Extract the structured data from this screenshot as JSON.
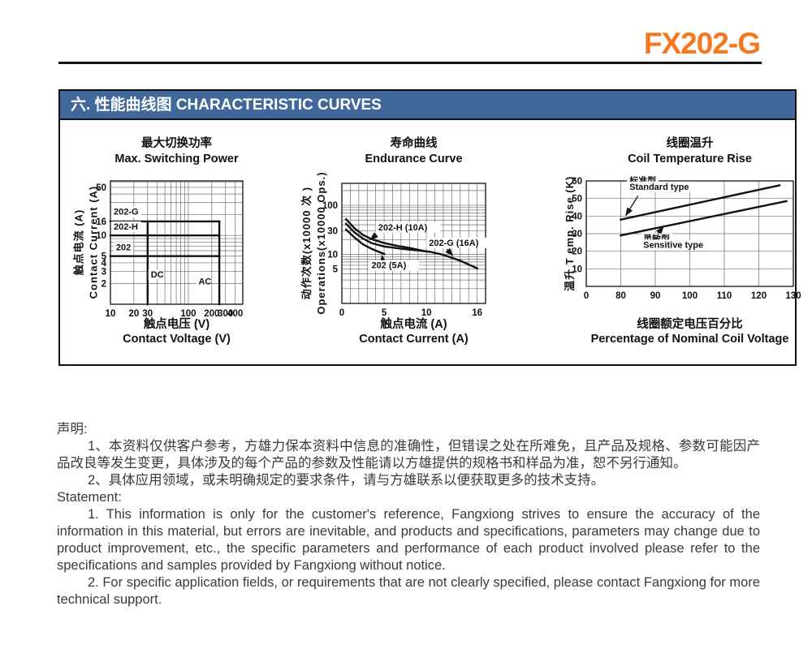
{
  "page": {
    "product_code": "FX202-G",
    "section_title": "六. 性能曲线图 CHARACTERISTIC CURVES"
  },
  "colors": {
    "accent_orange": "#F4791E",
    "section_bar_blue": "#41689A",
    "curve_black": "#111111",
    "grid_gray": "#6e6e6e"
  },
  "statement": {
    "heading_cn": "声明:",
    "items_cn": [
      "1、本资料仅供客户参考，方雄力保本资料中信息的准确性，但错误之处在所难免，且产品及规格、参数可能因产品改良等发生变更，具体涉及的每个产品的参数及性能请以方雄提供的规格书和样品为准，恕不另行通知。",
      "2、具体应用领域，或未明确规定的要求条件，请与方雄联系以便获取更多的技术支持。"
    ],
    "heading_en": "Statement:",
    "items_en": [
      "1. This information is only for the customer's reference, Fangxiong strives to ensure the accuracy of the information in this material, but errors are inevitable, and products and specifications, parameters may change due to product improvement, etc., the specific parameters and performance of each product involved please refer to the specifications and samples provided by Fangxiong without notice.",
      "2. For specific application fields, or requirements that are not clearly specified, please contact Fangxiong for more technical support."
    ]
  },
  "chart_data": [
    {
      "type": "line",
      "title_cn": "最大切换功率",
      "title_en": "Max. Switching Power",
      "xlabel_cn": "触点电压 (V)",
      "xlabel_en": "Contact Voltage (V)",
      "ylabel_cn": "触点电流 (A)",
      "ylabel_en": "Contact Current (A)",
      "x_axis": {
        "scale": "log",
        "range": [
          10,
          500
        ],
        "gridlines": [
          20,
          30,
          40,
          50,
          60,
          70,
          80,
          90,
          100,
          200,
          300,
          400
        ],
        "ticks": [
          [
            10,
            "10"
          ],
          [
            20,
            "20"
          ],
          [
            30,
            "30"
          ],
          [
            100,
            "100"
          ],
          [
            200,
            "200"
          ],
          [
            300,
            "300"
          ],
          [
            400,
            "400"
          ]
        ]
      },
      "y_axis": {
        "scale": "log",
        "range": [
          1,
          62
        ],
        "gridlines": [
          2,
          3,
          4,
          5,
          6,
          7,
          8,
          9,
          10,
          20,
          30,
          40,
          50,
          60
        ],
        "ticks": [
          [
            2,
            "2"
          ],
          [
            3,
            "3"
          ],
          [
            4,
            "4"
          ],
          [
            5,
            "5"
          ],
          [
            10,
            "10"
          ],
          [
            16,
            "16"
          ],
          [
            50,
            "50"
          ]
        ]
      },
      "series": [
        {
          "name": "202-G max switching boundary",
          "points": [
            [
              10,
              16
            ],
            [
              250,
              16
            ]
          ]
        },
        {
          "name": "202-H max switching boundary",
          "points": [
            [
              10,
              10
            ],
            [
              250,
              10
            ]
          ]
        },
        {
          "name": "202 max switching boundary",
          "points": [
            [
              10,
              5
            ],
            [
              250,
              5
            ]
          ]
        },
        {
          "name": "DC voltage limit 30V",
          "points": [
            [
              30,
              1
            ],
            [
              30,
              16
            ]
          ]
        },
        {
          "name": "AC voltage limit 250V",
          "points": [
            [
              250,
              1
            ],
            [
              250,
              16
            ]
          ]
        }
      ],
      "annotations": [
        {
          "text": "202-G",
          "at": [
            11,
            20
          ],
          "bg": true
        },
        {
          "text": "202-H",
          "at": [
            11,
            12.2
          ],
          "bg": true
        },
        {
          "text": "202",
          "at": [
            11.8,
            6.1
          ],
          "bg": true
        },
        {
          "text": "DC",
          "at": [
            33,
            2.45
          ],
          "bg": true
        },
        {
          "text": "AC",
          "at": [
            135,
            1.95
          ],
          "bg": true
        }
      ],
      "arrows": []
    },
    {
      "type": "line",
      "title_cn": "寿命曲线",
      "title_en": "Endurance Curve",
      "xlabel_cn": "触点电流 (A)",
      "xlabel_en": "Contact Current (A)",
      "ylabel_cn": "动作次数(x10000 次 )",
      "ylabel_en": "Operations(x10000 Ops.)",
      "x_axis": {
        "scale": "linear",
        "range": [
          0,
          17
        ],
        "gridlines": [
          1,
          2,
          3,
          4,
          5,
          6,
          7,
          8,
          9,
          10,
          11,
          12,
          13,
          14,
          15,
          16
        ],
        "ticks": [
          [
            0,
            "0"
          ],
          [
            5,
            "5"
          ],
          [
            10,
            "10"
          ],
          [
            16,
            "16"
          ]
        ]
      },
      "y_axis": {
        "scale": "log",
        "range": [
          1,
          280
        ],
        "gridlines": [
          2,
          3,
          4,
          5,
          6,
          7,
          8,
          9,
          10,
          20,
          30,
          40,
          50,
          60,
          70,
          80,
          90,
          100,
          200
        ],
        "ticks": [
          [
            5,
            "5"
          ],
          [
            10,
            "10"
          ],
          [
            30,
            "30"
          ],
          [
            100,
            "100"
          ]
        ]
      },
      "series": [
        {
          "name": "202-H (10A)",
          "points": [
            [
              0.5,
              52
            ],
            [
              1.5,
              34
            ],
            [
              2.5,
              25
            ],
            [
              3.5,
              20.5
            ],
            [
              5,
              17
            ],
            [
              6.5,
              15
            ],
            [
              8,
              13.5
            ],
            [
              10,
              11.5
            ]
          ]
        },
        {
          "name": "202-G (16A)",
          "points": [
            [
              0.5,
              42
            ],
            [
              1.5,
              28
            ],
            [
              2.5,
              21
            ],
            [
              3.5,
              17
            ],
            [
              5,
              14.5
            ],
            [
              7,
              13
            ],
            [
              9,
              12
            ],
            [
              10.5,
              11.2
            ],
            [
              12,
              9.8
            ],
            [
              14,
              7.4
            ],
            [
              16,
              5.2
            ]
          ]
        },
        {
          "name": "202 (5A)",
          "points": [
            [
              0.5,
              32
            ],
            [
              1.5,
              22
            ],
            [
              2.5,
              16
            ],
            [
              3.5,
              13
            ],
            [
              4.5,
              11
            ],
            [
              5,
              10.2
            ]
          ]
        }
      ],
      "annotations": [
        {
          "text": "202-H  (10A)",
          "at": [
            4.3,
            31
          ],
          "bg": true
        },
        {
          "text": "202-G  (16A)",
          "at": [
            10.3,
            15
          ],
          "bg": true
        },
        {
          "text": "202  (5A)",
          "at": [
            3.5,
            5.2
          ],
          "bg": true
        }
      ],
      "arrows": [
        {
          "from": [
            4.1,
            25.5
          ],
          "to": [
            3.4,
            20
          ]
        },
        {
          "from": [
            12.4,
            12.8
          ],
          "to": [
            13.1,
            9.5
          ]
        },
        {
          "from": [
            4.9,
            6.4
          ],
          "to": [
            4.75,
            9.4
          ]
        }
      ]
    },
    {
      "type": "line",
      "title_cn": "线圈温升",
      "title_en": "Coil Temperature Rise",
      "xlabel_cn": "线圈额定电压百分比",
      "xlabel_en": "Percentage of Nominal Coil Voltage",
      "ylabel_cn": "温升 T emp. Rise (K)",
      "x_axis": {
        "scale": "segmented",
        "segments": [
          [
            0,
            0
          ],
          [
            80,
            1
          ],
          [
            130,
            6
          ]
        ],
        "range": [
          0,
          6
        ],
        "gridlines": [
          80,
          90,
          100,
          110,
          120
        ],
        "ticks": [
          [
            0,
            "0"
          ],
          [
            80,
            "80"
          ],
          [
            90,
            "90"
          ],
          [
            100,
            "100"
          ],
          [
            110,
            "110"
          ],
          [
            120,
            "120"
          ],
          [
            130,
            "130"
          ]
        ]
      },
      "y_axis": {
        "scale": "linear",
        "range": [
          0,
          60
        ],
        "gridlines": [
          10,
          20,
          30,
          40,
          50
        ],
        "ticks": [
          [
            10,
            "10"
          ],
          [
            20,
            "20"
          ],
          [
            30,
            "30"
          ],
          [
            40,
            "40"
          ],
          [
            50,
            "50"
          ],
          [
            60,
            "60"
          ]
        ]
      },
      "series": [
        {
          "name": "标准型 Standard type",
          "points": [
            [
              80,
              38
            ],
            [
              126,
              57.5
            ]
          ]
        },
        {
          "name": "灵敏型 Sensitive type",
          "points": [
            [
              80,
              29
            ],
            [
              128,
              48.5
            ]
          ]
        }
      ],
      "annotations": [
        {
          "text": "标准型",
          "at": [
            82.5,
            58.5
          ],
          "bg": true
        },
        {
          "text": "Standard type",
          "at": [
            82.5,
            55
          ],
          "bg": true
        },
        {
          "text": "灵敏型",
          "at": [
            86.5,
            25.5
          ],
          "bg": true
        },
        {
          "text": "Sensitive type",
          "at": [
            86.5,
            22
          ],
          "bg": true
        }
      ],
      "arrows": [
        {
          "from": [
            85,
            51.5
          ],
          "to": [
            81.5,
            40.5
          ]
        },
        {
          "from": [
            89.5,
            27
          ],
          "to": [
            92.3,
            33.8
          ]
        }
      ]
    }
  ]
}
